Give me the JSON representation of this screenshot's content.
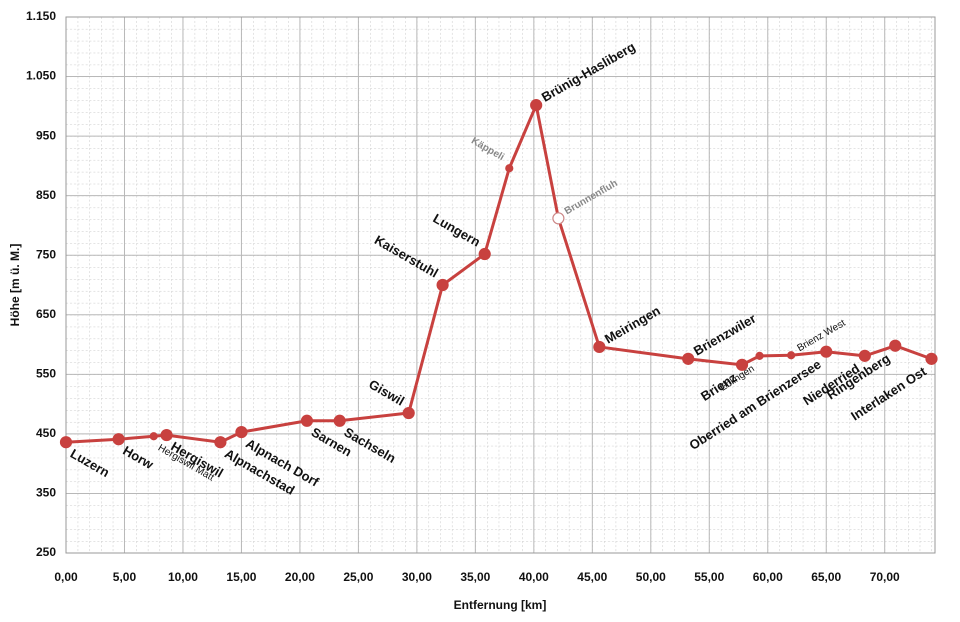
{
  "chart_data": {
    "type": "line",
    "y_label": "Höhe [m ü. M.]",
    "x_label": "Entfernung [km]",
    "color": "#c8413f",
    "x": [
      0,
      4.5,
      7.5,
      8.6,
      13.2,
      15.0,
      20.6,
      23.4,
      29.3,
      32.2,
      35.8,
      37.9,
      40.2,
      42.1,
      45.6,
      53.2,
      57.8,
      59.3,
      62.0,
      65.0,
      68.3,
      70.9,
      74.0
    ],
    "values": [
      436,
      441,
      446,
      448,
      436,
      453,
      472,
      472,
      485,
      700,
      752,
      896,
      1002,
      812,
      596,
      576,
      566,
      581,
      582,
      588,
      581,
      598,
      576
    ],
    "labels": [
      "Luzern",
      "Horw",
      "Hergiswil Matt",
      "Hergiswil",
      "Alpnachstad",
      "Alpnach Dorf",
      "Sarnen",
      "Sachseln",
      "Giswil",
      "Kaiserstuhl",
      "Lungern",
      "Käppeli",
      "Brünig-Hasliberg",
      "Brunnenfluh",
      "Meiringen",
      "Brienzwiler",
      "Brienz",
      "Eblingen",
      "Brienz West",
      "Oberried am Brienzersee",
      "Niederried",
      "Ringenberg",
      "Interlaken Ost"
    ],
    "point_style": [
      "big",
      "big",
      "small",
      "big",
      "big",
      "big",
      "big",
      "big",
      "big",
      "big",
      "big",
      "small",
      "big",
      "hollow",
      "big",
      "big",
      "big",
      "small",
      "small",
      "big",
      "big",
      "big",
      "big"
    ],
    "xlim": [
      0,
      74.3
    ],
    "ylim": [
      250,
      1150
    ],
    "xticks": [
      {
        "value": 0,
        "label": "0,00"
      },
      {
        "value": 5,
        "label": "5,00"
      },
      {
        "value": 10,
        "label": "10,00"
      },
      {
        "value": 15,
        "label": "15,00"
      },
      {
        "value": 20,
        "label": "20,00"
      },
      {
        "value": 25,
        "label": "25,00"
      },
      {
        "value": 30,
        "label": "30,00"
      },
      {
        "value": 35,
        "label": "35,00"
      },
      {
        "value": 40,
        "label": "40,00"
      },
      {
        "value": 45,
        "label": "45,00"
      },
      {
        "value": 50,
        "label": "50,00"
      },
      {
        "value": 55,
        "label": "55,00"
      },
      {
        "value": 60,
        "label": "60,00"
      },
      {
        "value": 65,
        "label": "65,00"
      },
      {
        "value": 70,
        "label": "70,00"
      }
    ],
    "yticks": [
      250,
      350,
      450,
      550,
      650,
      750,
      850,
      950,
      {
        "value": 1050,
        "label": "1.050"
      },
      {
        "value": 1150,
        "label": "1.150"
      }
    ],
    "grid": true
  }
}
